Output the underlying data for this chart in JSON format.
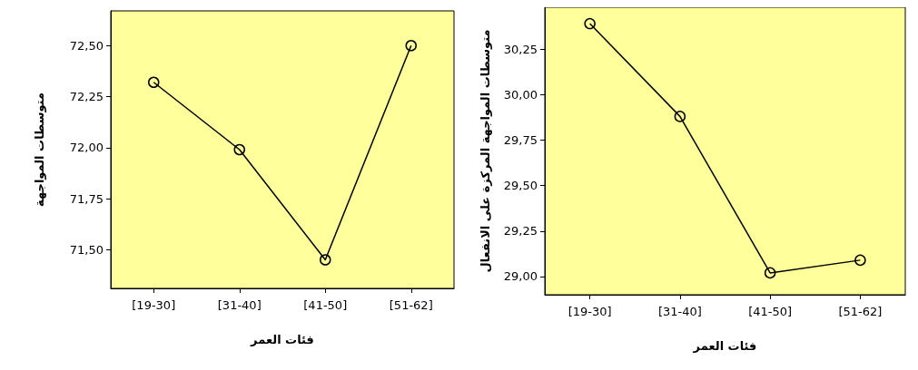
{
  "chart_data": [
    {
      "type": "line",
      "xlabel": "فئات العمر",
      "ylabel": "متوسطات المواجهة",
      "categories": [
        "[19-30]",
        "[31-40]",
        "[41-50]",
        "[51-62]"
      ],
      "series": [
        {
          "color": "#000000",
          "values": [
            72.32,
            71.99,
            71.45,
            72.5
          ]
        }
      ],
      "ylim": [
        71.31,
        72.67
      ],
      "yticks": [
        {
          "value": 71.5,
          "label": "71,50"
        },
        {
          "value": 71.75,
          "label": "71,75"
        },
        {
          "value": 72,
          "label": "72,00"
        },
        {
          "value": 72.25,
          "label": "72,25"
        },
        {
          "value": 72.5,
          "label": "72,50"
        }
      ],
      "grid": false,
      "marker": "circle",
      "line_style": "solid"
    },
    {
      "type": "line",
      "xlabel": "فئات العمر",
      "ylabel": "متوسطات المواجهة المركزة على الانفعال",
      "categories": [
        "[19-30]",
        "[31-40]",
        "[41-50]",
        "[51-62]"
      ],
      "series": [
        {
          "color": "#000000",
          "values": [
            30.39,
            29.88,
            29.02,
            29.09
          ]
        }
      ],
      "ylim": [
        28.9,
        30.48
      ],
      "yticks": [
        {
          "value": 29,
          "label": "29,00"
        },
        {
          "value": 29.25,
          "label": "29,25"
        },
        {
          "value": 29.5,
          "label": "29,50"
        },
        {
          "value": 29.75,
          "label": "29,75"
        },
        {
          "value": 30,
          "label": "30,00"
        },
        {
          "value": 30.25,
          "label": "30,25"
        }
      ],
      "grid": false,
      "marker": "circle",
      "line_style": "solid"
    }
  ]
}
